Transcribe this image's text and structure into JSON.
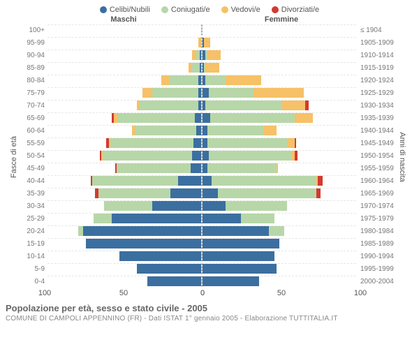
{
  "legend": [
    {
      "label": "Celibi/Nubili",
      "color": "#3b6fa0"
    },
    {
      "label": "Coniugati/e",
      "color": "#b7d7a8"
    },
    {
      "label": "Vedovi/e",
      "color": "#f6c167"
    },
    {
      "label": "Divorziati/e",
      "color": "#d33a2f"
    }
  ],
  "headers": {
    "male": "Maschi",
    "female": "Femmine"
  },
  "axes": {
    "y_left_title": "Fasce di età",
    "y_right_title": "Anni di nascita",
    "x_max": 100,
    "x_ticks_left": [
      100,
      50,
      0
    ],
    "x_ticks_right": [
      0,
      50,
      100
    ]
  },
  "title": "Popolazione per età, sesso e stato civile - 2005",
  "subtitle": "COMUNE DI CAMPOLI APPENNINO (FR) - Dati ISTAT 1° gennaio 2005 - Elaborazione TUTTITALIA.IT",
  "rows": [
    {
      "age": "100+",
      "year": "≤ 1904",
      "m": {
        "c": 0,
        "m": 0,
        "w": 0,
        "d": 0
      },
      "f": {
        "c": 0,
        "m": 0,
        "w": 0,
        "d": 0
      }
    },
    {
      "age": "95-99",
      "year": "1905-1909",
      "m": {
        "c": 0,
        "m": 0,
        "w": 2,
        "d": 0
      },
      "f": {
        "c": 1,
        "m": 0,
        "w": 4,
        "d": 0
      }
    },
    {
      "age": "90-94",
      "year": "1910-1914",
      "m": {
        "c": 1,
        "m": 2,
        "w": 3,
        "d": 0
      },
      "f": {
        "c": 2,
        "m": 1,
        "w": 9,
        "d": 0
      }
    },
    {
      "age": "85-89",
      "year": "1915-1919",
      "m": {
        "c": 1,
        "m": 5,
        "w": 2,
        "d": 0
      },
      "f": {
        "c": 1,
        "m": 1,
        "w": 9,
        "d": 0
      }
    },
    {
      "age": "80-84",
      "year": "1920-1924",
      "m": {
        "c": 2,
        "m": 19,
        "w": 5,
        "d": 0
      },
      "f": {
        "c": 2,
        "m": 13,
        "w": 23,
        "d": 0
      }
    },
    {
      "age": "75-79",
      "year": "1925-1929",
      "m": {
        "c": 2,
        "m": 30,
        "w": 6,
        "d": 0
      },
      "f": {
        "c": 4,
        "m": 29,
        "w": 33,
        "d": 0
      }
    },
    {
      "age": "70-74",
      "year": "1930-1934",
      "m": {
        "c": 2,
        "m": 38,
        "w": 2,
        "d": 0
      },
      "f": {
        "c": 2,
        "m": 50,
        "w": 15,
        "d": 2
      }
    },
    {
      "age": "65-69",
      "year": "1935-1939",
      "m": {
        "c": 4,
        "m": 50,
        "w": 3,
        "d": 1
      },
      "f": {
        "c": 5,
        "m": 55,
        "w": 12,
        "d": 0
      }
    },
    {
      "age": "60-64",
      "year": "1940-1944",
      "m": {
        "c": 3,
        "m": 40,
        "w": 2,
        "d": 0
      },
      "f": {
        "c": 3,
        "m": 37,
        "w": 8,
        "d": 0
      }
    },
    {
      "age": "55-59",
      "year": "1945-1949",
      "m": {
        "c": 5,
        "m": 54,
        "w": 1,
        "d": 2
      },
      "f": {
        "c": 3,
        "m": 52,
        "w": 5,
        "d": 1
      }
    },
    {
      "age": "50-54",
      "year": "1950-1954",
      "m": {
        "c": 6,
        "m": 58,
        "w": 1,
        "d": 1
      },
      "f": {
        "c": 4,
        "m": 54,
        "w": 2,
        "d": 2
      }
    },
    {
      "age": "45-49",
      "year": "1955-1959",
      "m": {
        "c": 7,
        "m": 48,
        "w": 0,
        "d": 1
      },
      "f": {
        "c": 3,
        "m": 45,
        "w": 1,
        "d": 0
      }
    },
    {
      "age": "40-44",
      "year": "1960-1964",
      "m": {
        "c": 15,
        "m": 56,
        "w": 0,
        "d": 1
      },
      "f": {
        "c": 6,
        "m": 68,
        "w": 1,
        "d": 3
      }
    },
    {
      "age": "35-39",
      "year": "1965-1969",
      "m": {
        "c": 20,
        "m": 47,
        "w": 0,
        "d": 2
      },
      "f": {
        "c": 10,
        "m": 64,
        "w": 0,
        "d": 3
      }
    },
    {
      "age": "30-34",
      "year": "1970-1974",
      "m": {
        "c": 32,
        "m": 31,
        "w": 0,
        "d": 0
      },
      "f": {
        "c": 15,
        "m": 40,
        "w": 0,
        "d": 0
      }
    },
    {
      "age": "25-29",
      "year": "1975-1979",
      "m": {
        "c": 58,
        "m": 12,
        "w": 0,
        "d": 0
      },
      "f": {
        "c": 25,
        "m": 22,
        "w": 0,
        "d": 0
      }
    },
    {
      "age": "20-24",
      "year": "1980-1984",
      "m": {
        "c": 77,
        "m": 3,
        "w": 0,
        "d": 0
      },
      "f": {
        "c": 43,
        "m": 10,
        "w": 0,
        "d": 0
      }
    },
    {
      "age": "15-19",
      "year": "1985-1989",
      "m": {
        "c": 75,
        "m": 0,
        "w": 0,
        "d": 0
      },
      "f": {
        "c": 50,
        "m": 0,
        "w": 0,
        "d": 0
      }
    },
    {
      "age": "10-14",
      "year": "1990-1994",
      "m": {
        "c": 53,
        "m": 0,
        "w": 0,
        "d": 0
      },
      "f": {
        "c": 47,
        "m": 0,
        "w": 0,
        "d": 0
      }
    },
    {
      "age": "5-9",
      "year": "1995-1999",
      "m": {
        "c": 42,
        "m": 0,
        "w": 0,
        "d": 0
      },
      "f": {
        "c": 48,
        "m": 0,
        "w": 0,
        "d": 0
      }
    },
    {
      "age": "0-4",
      "year": "2000-2004",
      "m": {
        "c": 35,
        "m": 0,
        "w": 0,
        "d": 0
      },
      "f": {
        "c": 37,
        "m": 0,
        "w": 0,
        "d": 0
      }
    }
  ]
}
